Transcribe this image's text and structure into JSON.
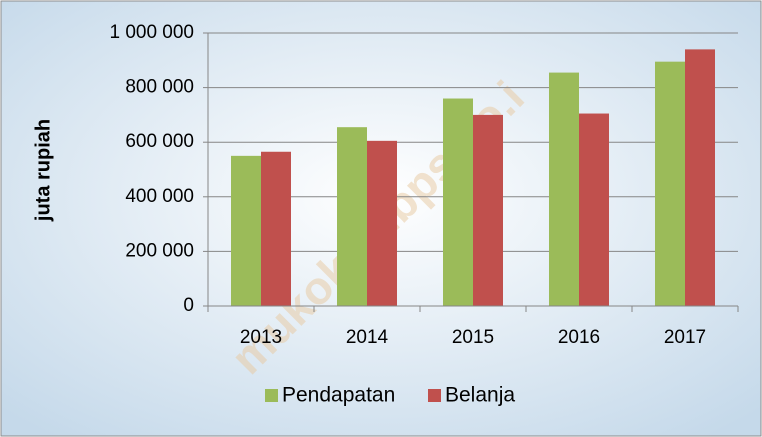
{
  "chart_data": {
    "type": "bar",
    "y_label": "juta rupiah",
    "watermark": "mukokab.bps.go.i",
    "categories": [
      "2013",
      "2014",
      "2015",
      "2016",
      "2017"
    ],
    "series": [
      {
        "name": "Pendapatan",
        "color": "#9bbb59",
        "values": [
          550000,
          655000,
          760000,
          855000,
          895000
        ]
      },
      {
        "name": "Belanja",
        "color": "#c0504d",
        "values": [
          565000,
          605000,
          700000,
          705000,
          940000
        ]
      }
    ],
    "ylim": [
      0,
      1000000
    ],
    "yticks": [
      0,
      {
        "value": 200000,
        "label": "200 000"
      },
      {
        "value": 400000,
        "label": "400 000"
      },
      {
        "value": 600000,
        "label": "600 000"
      },
      {
        "value": 800000,
        "label": "800 000"
      },
      {
        "value": 1000000,
        "label": "1 000 000"
      }
    ],
    "grid": true,
    "legend": "bottom"
  }
}
